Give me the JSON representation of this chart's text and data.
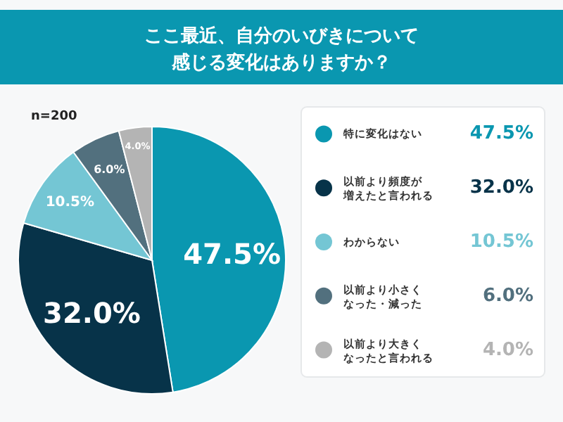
{
  "chart_data": {
    "type": "pie",
    "title": "ここ最近、自分のいびきについて感じる変化はありますか？",
    "categories": [
      "特に変化はない",
      "以前より頻度が増えたと言われる",
      "わからない",
      "以前より小さくなった・減った",
      "以前より大きくなったと言われる"
    ],
    "values": [
      47.5,
      32.0,
      10.5,
      6.0,
      4.0
    ],
    "colors": [
      "#0a97b0",
      "#073349",
      "#74c6d4",
      "#52707e",
      "#b4b4b4"
    ],
    "value_labels": [
      "47.5%",
      "32.0%",
      "10.5%",
      "6.0%",
      "4.0%"
    ],
    "legend": "right",
    "annotations": [
      "n=200"
    ]
  }
}
